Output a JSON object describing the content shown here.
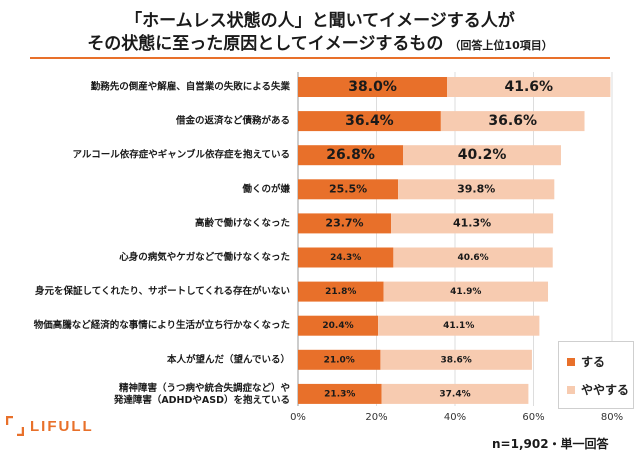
{
  "title": {
    "line1": "「ホームレス状態の人」と聞いてイメージする人が",
    "line2": "その状態に至った原因としてイメージするもの",
    "line2_sub": "（回答上位10項目）"
  },
  "legend": {
    "series1": "する",
    "series2": "ややする"
  },
  "colors": {
    "series1": "#e8702a",
    "series2": "#f7cbb0",
    "accent": "#e8702a"
  },
  "brand": {
    "logo_icon": "lifull-bracket-icon",
    "name": "LIFULL"
  },
  "note": "n=1,902・単一回答",
  "chart_data": {
    "type": "bar",
    "orientation": "horizontal",
    "stacked": true,
    "title": "「ホームレス状態の人」と聞いてイメージする人がその状態に至った原因としてイメージするもの（回答上位10項目）",
    "xlim": [
      0,
      80
    ],
    "xticks": [
      "0%",
      "20%",
      "40%",
      "60%",
      "80%"
    ],
    "categories": [
      [
        "勤務先の倒産や解雇、自営業の失敗による失業"
      ],
      [
        "借金の返済など債務がある"
      ],
      [
        "アルコール依存症やギャンブル依存症を抱えている"
      ],
      [
        "働くのが嫌"
      ],
      [
        "高齢で働けなくなった"
      ],
      [
        "心身の病気やケガなどで働けなくなった"
      ],
      [
        "身元を保証してくれたり、サポートしてくれる存在がいない"
      ],
      [
        "物価高騰など経済的な事情により生活が立ち行かなくなった"
      ],
      [
        "本人が望んだ（望んでいる）"
      ],
      [
        "精神障害（うつ病や統合失調症など）や",
        "発達障害（ADHDやASD）を抱えている"
      ]
    ],
    "series": [
      {
        "name": "する",
        "values": [
          38.0,
          36.4,
          26.8,
          25.5,
          23.7,
          24.3,
          21.8,
          20.4,
          21.0,
          21.3
        ]
      },
      {
        "name": "ややする",
        "values": [
          41.6,
          36.6,
          40.2,
          39.8,
          41.3,
          40.6,
          41.9,
          41.1,
          38.6,
          37.4
        ]
      }
    ],
    "label_font_sizes": [
      14,
      14,
      14,
      11,
      11,
      9,
      9,
      9,
      9,
      9
    ]
  }
}
